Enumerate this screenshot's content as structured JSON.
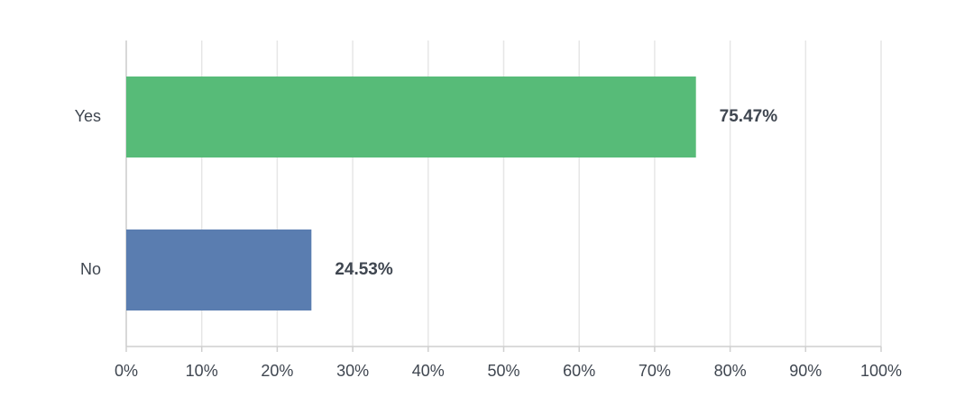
{
  "chart_data": {
    "type": "hbar",
    "categories": [
      "Yes",
      "No"
    ],
    "values": [
      75.47,
      24.53
    ],
    "value_labels": [
      "75.47%",
      "24.53%"
    ],
    "colors": [
      "#57bb78",
      "#5a7db0"
    ],
    "xlim": [
      0,
      100
    ],
    "xticks": [
      {
        "value": 0,
        "label": "0%"
      },
      {
        "value": 10,
        "label": "10%"
      },
      {
        "value": 20,
        "label": "20%"
      },
      {
        "value": 30,
        "label": "30%"
      },
      {
        "value": 40,
        "label": "40%"
      },
      {
        "value": 50,
        "label": "50%"
      },
      {
        "value": 60,
        "label": "60%"
      },
      {
        "value": 70,
        "label": "70%"
      },
      {
        "value": 80,
        "label": "80%"
      },
      {
        "value": 90,
        "label": "90%"
      },
      {
        "value": 100,
        "label": "100%"
      }
    ],
    "grid": true
  }
}
